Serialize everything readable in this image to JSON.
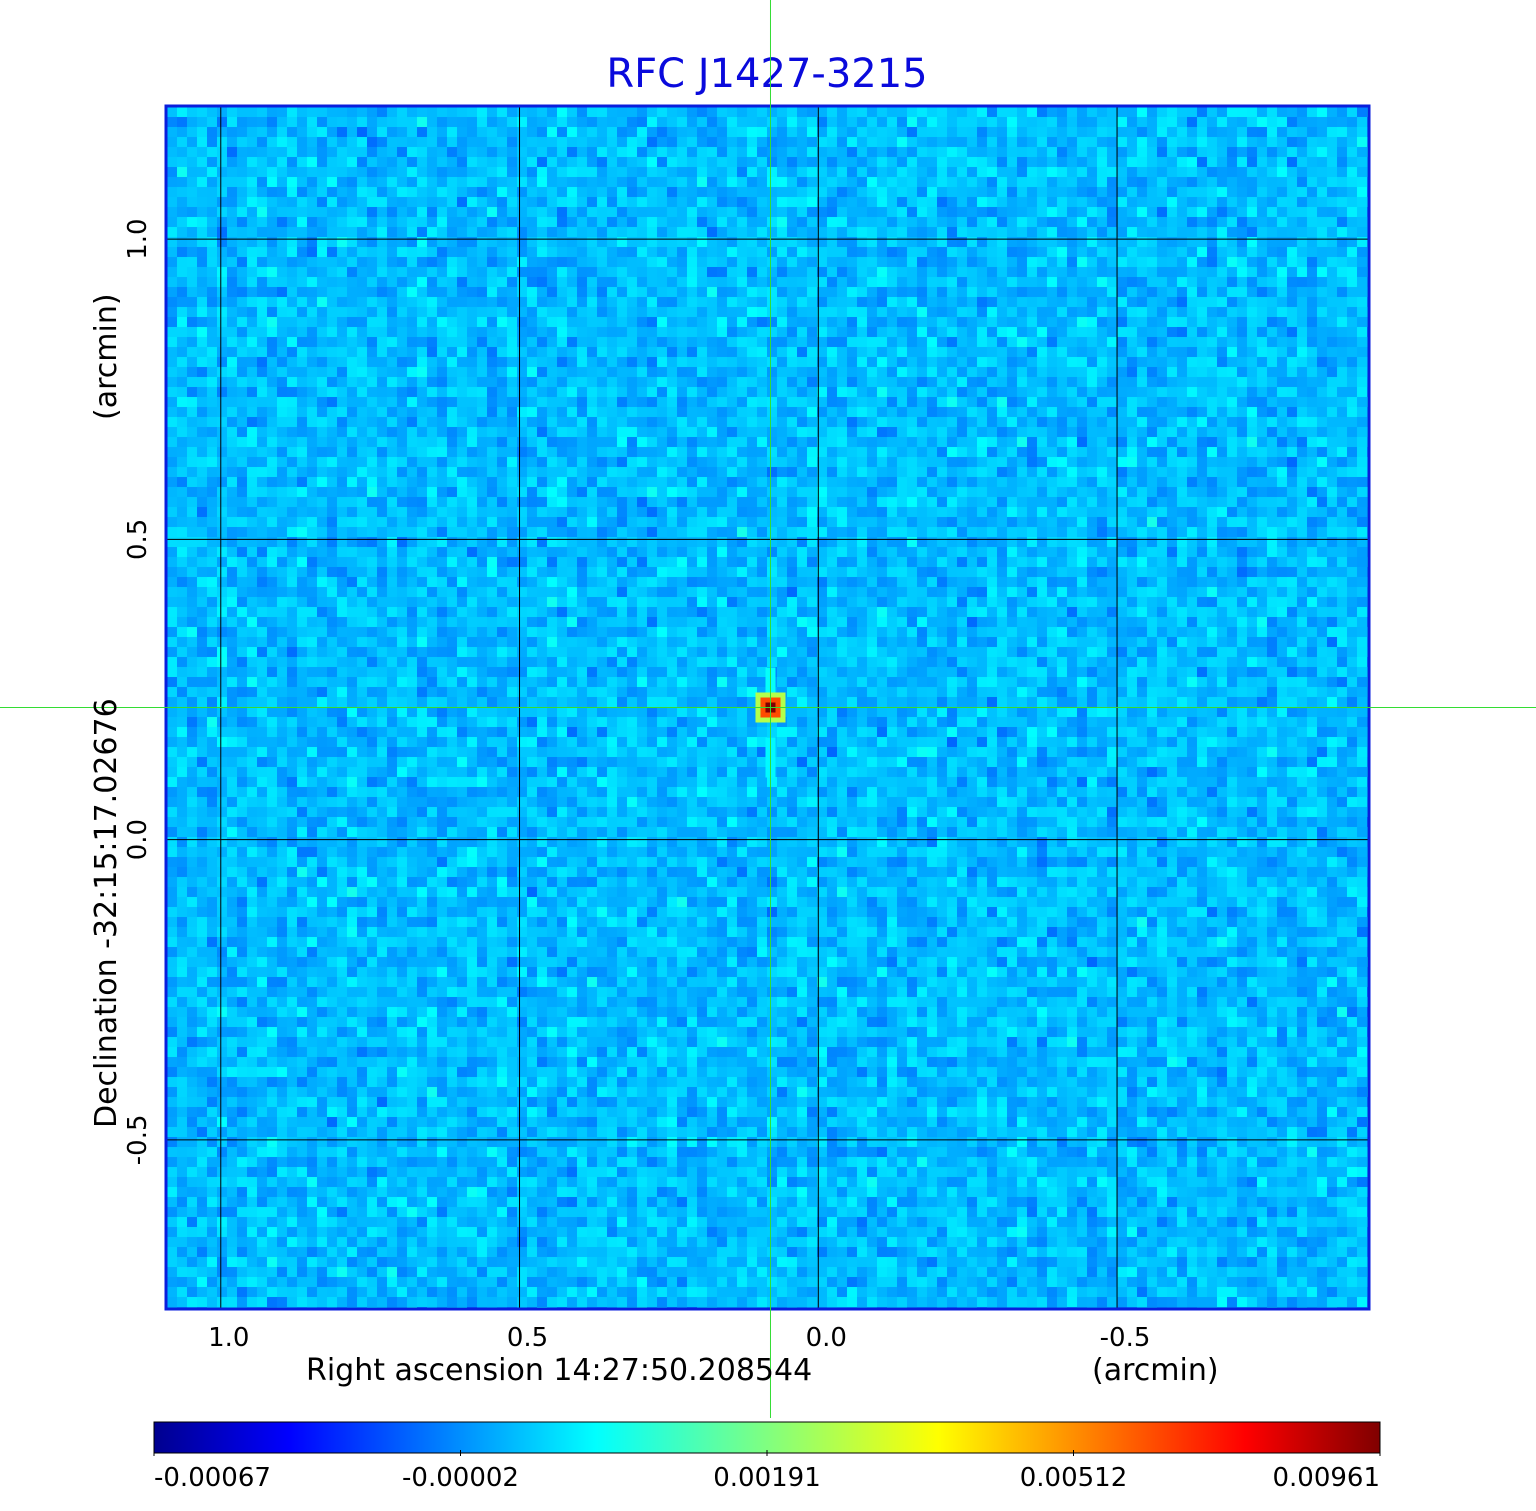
{
  "chart_data": {
    "type": "heatmap",
    "title": "RFC J1427-3215",
    "xlabel": "Right ascension  14:27:50.208544",
    "xunit": "(arcmin)",
    "ylabel": "Declination  -32:15:17.02676",
    "yunit": "(arcmin)",
    "x_ticks": [
      1.0,
      0.5,
      0.0,
      -0.5
    ],
    "x_tick_labels": [
      "1.0",
      "0.5",
      "0.0",
      "-0.5"
    ],
    "y_ticks": [
      1.0,
      0.5,
      0.0,
      -0.5
    ],
    "y_tick_labels": [
      "1.0",
      "0.5",
      "0.0",
      "-0.5"
    ],
    "xlim": [
      1.09,
      -0.92
    ],
    "ylim": [
      -0.78,
      1.22
    ],
    "grid": true,
    "source_peak": {
      "x": 0.08,
      "y": 0.22
    },
    "crosshair": {
      "x": 0.08,
      "y": 0.22
    },
    "colorbar": {
      "orientation": "horizontal",
      "tick_labels": [
        "-0.00067",
        "-0.00002",
        "0.00191",
        "0.00512",
        "0.00961"
      ],
      "colormap": "jet"
    }
  },
  "colors": {
    "title": "#0a0adc",
    "frame": "#0a1edc",
    "crosshair": "#33dd33",
    "background_noise": "#1e8cf0"
  }
}
